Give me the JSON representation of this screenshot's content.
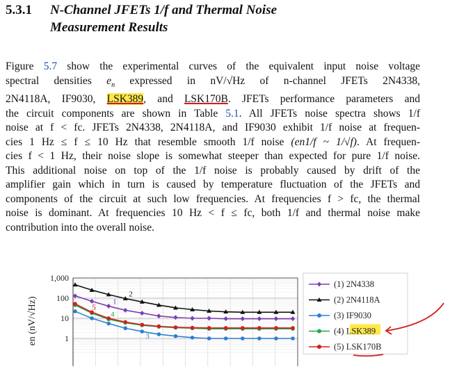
{
  "section": {
    "number": "5.3.1",
    "title_line1": "N-Channel JFETs 1/f and Thermal Noise",
    "title_line2": "Measurement Results"
  },
  "paragraph": {
    "l1a": "Figure ",
    "fig_ref": "5.7",
    "l1b": " show the experimental curves of the equivalent input noise voltage",
    "l2a": "spectral densities ",
    "l2_en": "e",
    "l2_n": "n",
    "l2b": " expressed in ",
    "l2_unit": "nV/√Hz",
    "l2c": " of n-channel JFETs 2N4338,",
    "l3a": "2N4118A, IF9030, ",
    "l3_lsk389": "LSK389",
    "l3b": ", and ",
    "l3_lsk170b": "LSK170B",
    "l3c": ". JFETs performance parameters and",
    "l4a": "the circuit components are shown in Table ",
    "table_ref": "5.1",
    "l4b": ". All JFETs noise spectra shows 1/f",
    "l5": "noise at f < fc. JFETs 2N4338, 2N4118A, and IF9030 exhibit 1/f noise at frequen-",
    "l6a": "cies 1 Hz ≤ f ≤ 10 Hz that resemble smooth 1/f noise ",
    "l6_formula": "(en1/f ~ 1/√f)",
    "l6b": ". At frequen-",
    "l7": "cies f < 1 Hz, their noise slope is somewhat steeper than expected for pure 1/f noise.",
    "l8": "This additional noise on top of the 1/f noise is probably caused by drift of the",
    "l9": "amplifier gain which in turn is caused by temperature fluctuation of the JFETs and",
    "l10": "components of the circuit at such low frequencies. At frequencies f > fc, the thermal",
    "l11": "noise is dominant. At frequencies 10 Hz < f ≤ fc, both 1/f and thermal noise make",
    "l12": "contribution into the overall noise."
  },
  "colors": {
    "link_blue": "#1f4fb5",
    "highlight": "#ffe84a",
    "annotation_red": "#d21b1b"
  },
  "chart_data": {
    "type": "line",
    "ylabel": "en (nV/√Hz)",
    "yscale": "log",
    "yticks": [
      "1,000",
      "100",
      "10",
      "1"
    ],
    "x_index": [
      0,
      1,
      2,
      3,
      4,
      5,
      6,
      7,
      8,
      9,
      10,
      11,
      12,
      13
    ],
    "series": [
      {
        "name": "(1) 2N4338",
        "label": "1",
        "color": "#7b3fb0",
        "marker": "diamond",
        "values": [
          130,
          70,
          40,
          25,
          18,
          13,
          11,
          10,
          10,
          9.5,
          9.5,
          9.5,
          9.5,
          9.5
        ]
      },
      {
        "name": "(2) 2N4118A",
        "label": "2",
        "color": "#111111",
        "marker": "triangle",
        "values": [
          460,
          250,
          150,
          95,
          65,
          45,
          33,
          27,
          23,
          21,
          20,
          20,
          20,
          20
        ]
      },
      {
        "name": "(3) IF9030",
        "label": "3",
        "color": "#2e7fd0",
        "marker": "circle",
        "values": [
          22,
          10,
          5.5,
          3.2,
          2.2,
          1.6,
          1.3,
          1.1,
          1.0,
          1.0,
          1.0,
          1.0,
          1.0,
          1.0
        ]
      },
      {
        "name": "(4) LSK389",
        "label": "4",
        "color": "#22a84a",
        "marker": "circle",
        "values": [
          45,
          18,
          9,
          6,
          4.5,
          3.8,
          3.4,
          3.2,
          3.0,
          3.0,
          3.0,
          3.0,
          3.0,
          3.0
        ]
      },
      {
        "name": "(5) LSK170B",
        "label": "5",
        "color": "#d3201f",
        "marker": "circle",
        "values": [
          52,
          20,
          10,
          6.5,
          4.8,
          4.0,
          3.6,
          3.4,
          3.3,
          3.3,
          3.3,
          3.3,
          3.3,
          3.3
        ]
      }
    ],
    "legend": "right",
    "grid": true
  }
}
